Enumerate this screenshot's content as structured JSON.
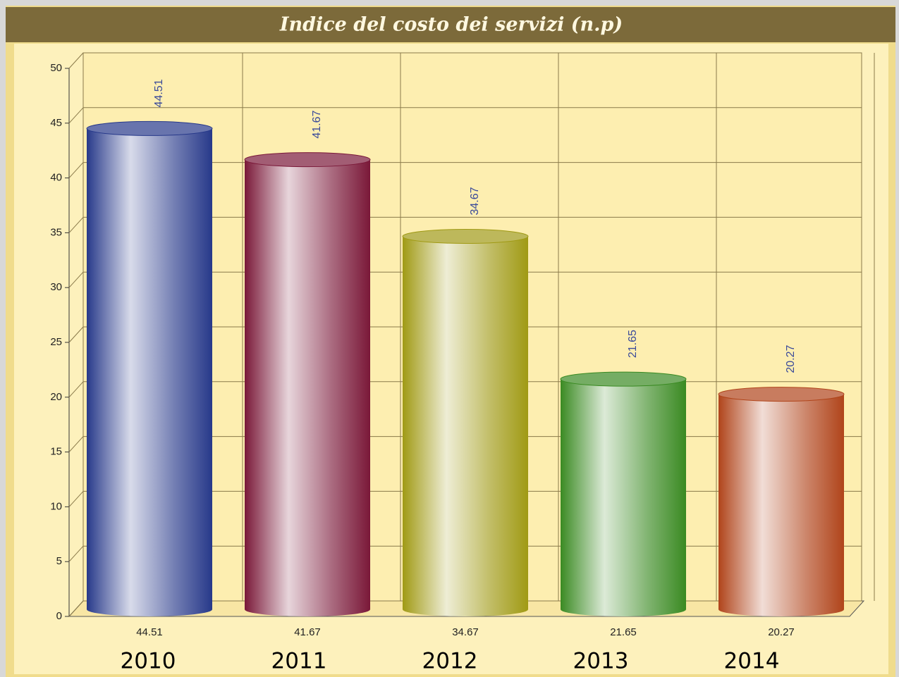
{
  "chart_data": {
    "type": "bar",
    "title": "Indice del costo dei servizi (n.p)",
    "categories": [
      "2010",
      "2011",
      "2012",
      "2013",
      "2014"
    ],
    "values": [
      44.51,
      41.67,
      34.67,
      21.65,
      20.27
    ],
    "colors": [
      "#27398a",
      "#7a1838",
      "#a09a14",
      "#3a8a22",
      "#b0441a"
    ],
    "ylim": [
      0,
      50
    ],
    "yticks": [
      0,
      5,
      10,
      15,
      20,
      25,
      30,
      35,
      40,
      45,
      50
    ],
    "grid": true
  }
}
